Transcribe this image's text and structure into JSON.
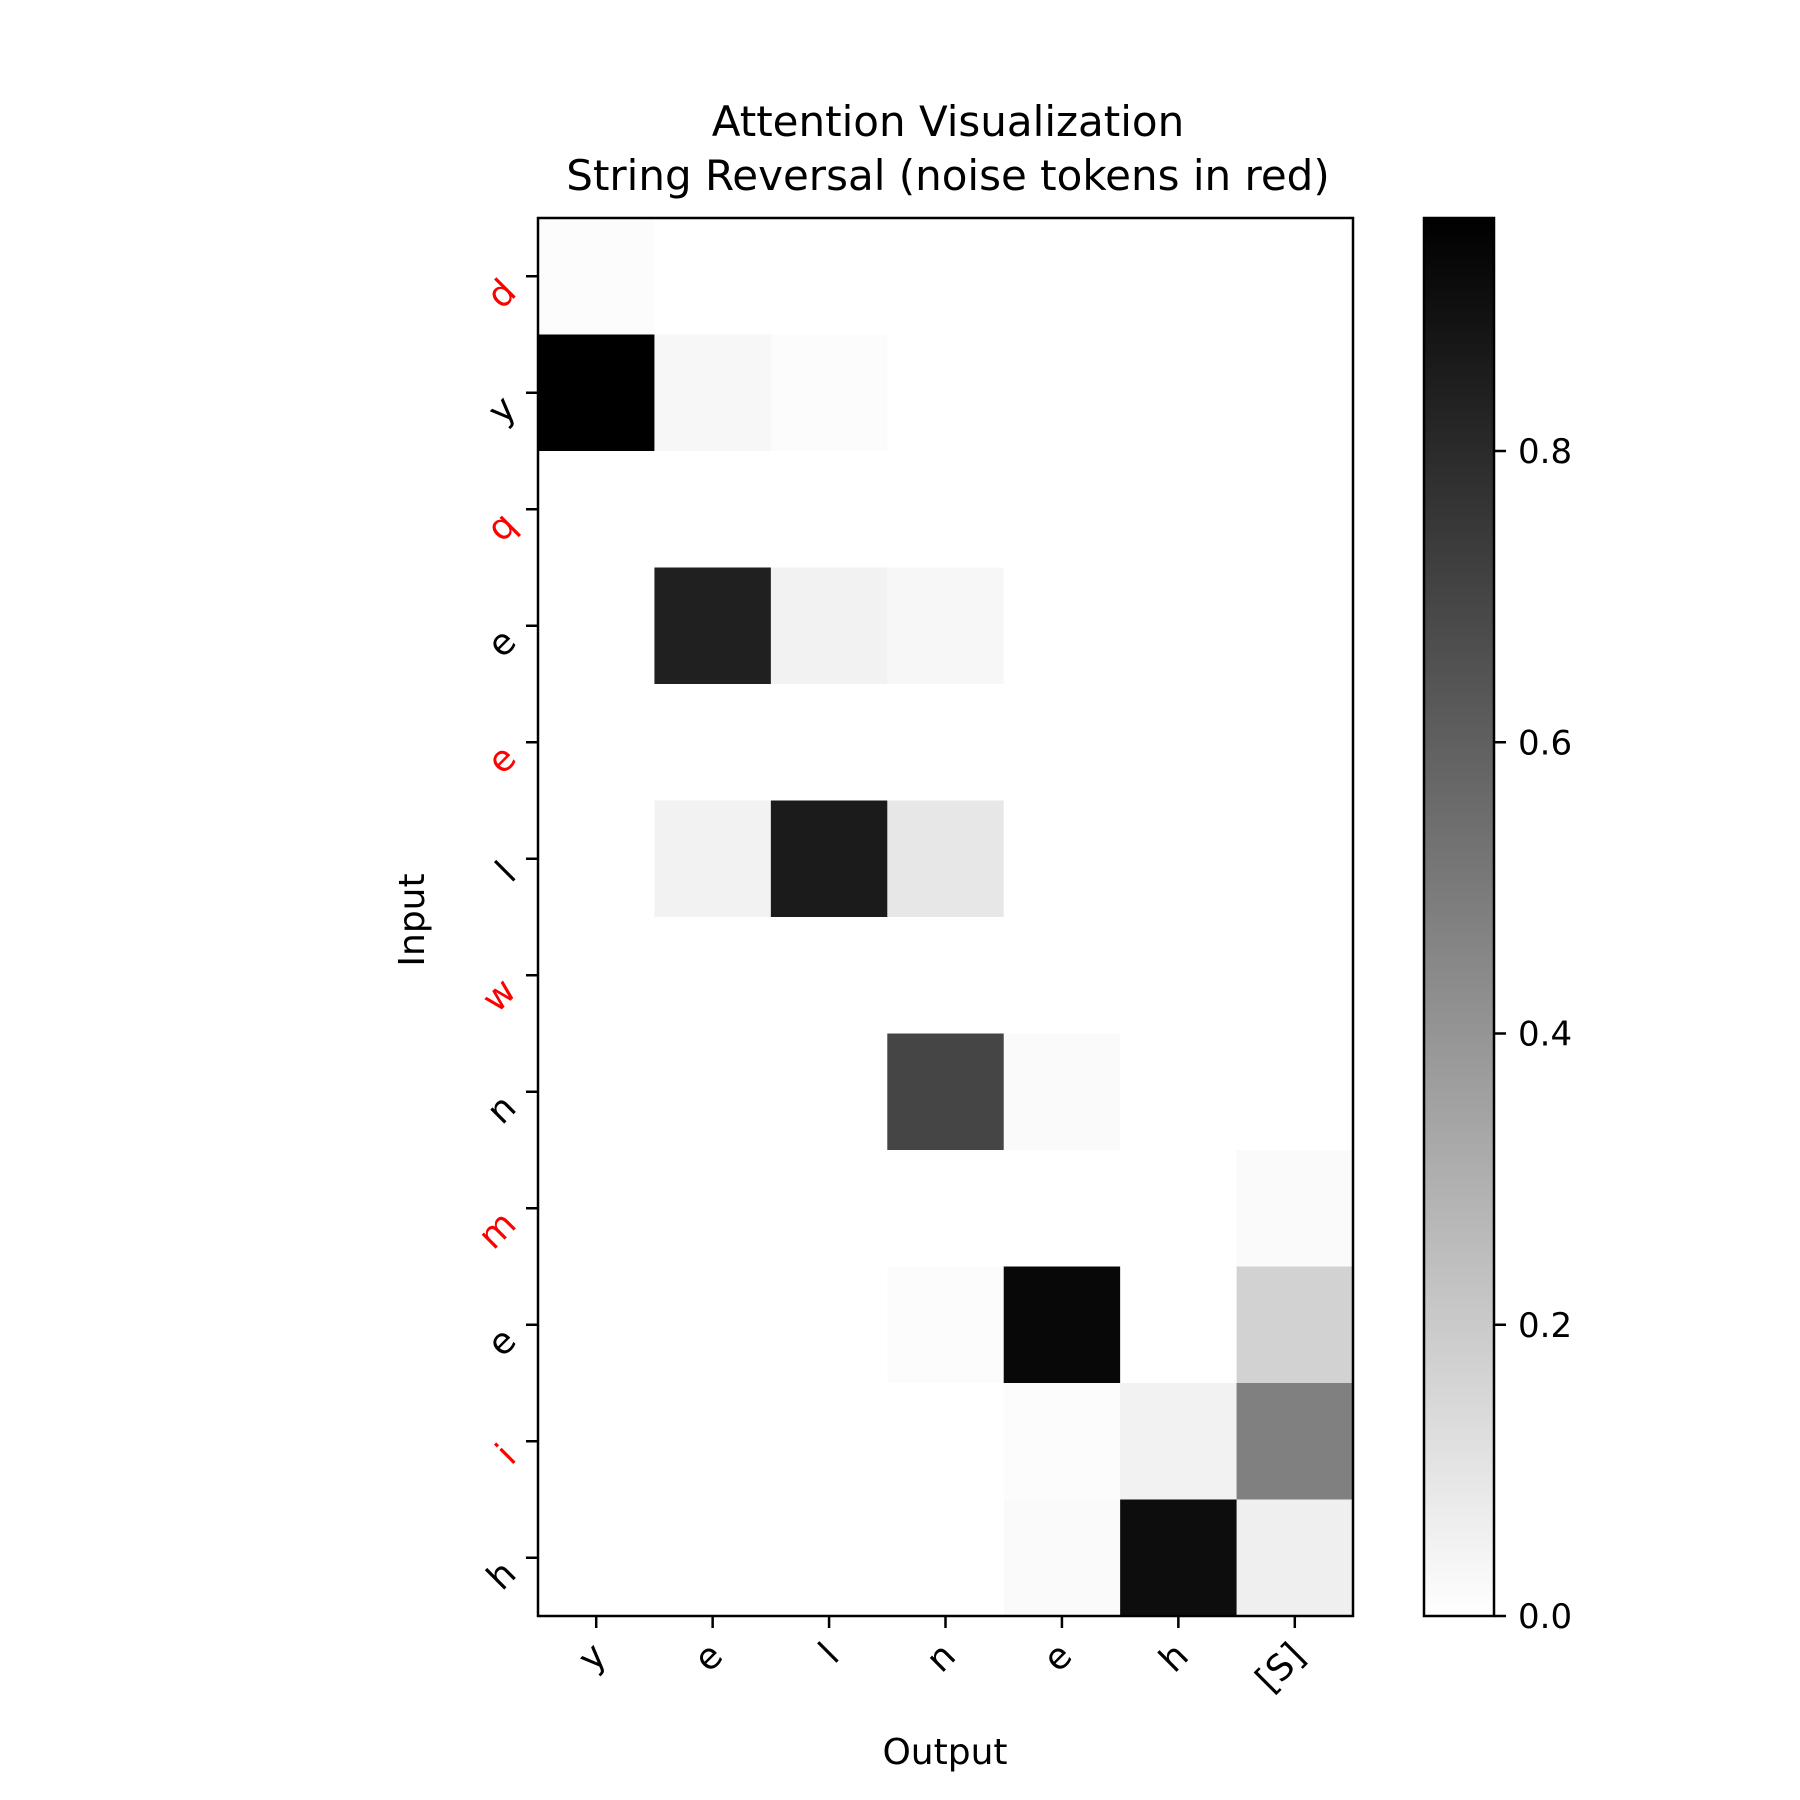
{
  "chart_data": {
    "type": "heatmap",
    "title": "Attention Visualization",
    "subtitle": "String Reversal (noise tokens in red)",
    "xlabel": "Output",
    "ylabel": "Input",
    "x_categories": [
      "y",
      "e",
      "l",
      "n",
      "e",
      "h",
      "[S]"
    ],
    "y_categories": [
      "d",
      "y",
      "q",
      "e",
      "e",
      "l",
      "w",
      "n",
      "m",
      "e",
      "i",
      "h"
    ],
    "noise_rows": [
      0,
      2,
      4,
      6,
      8,
      10
    ],
    "noise_color": "#ff0000",
    "colormap": "Greys",
    "values": [
      [
        0.01,
        0.0,
        0.0,
        0.0,
        0.0,
        0.0,
        0.0
      ],
      [
        0.96,
        0.03,
        0.01,
        0.0,
        0.0,
        0.0,
        0.0
      ],
      [
        0.0,
        0.0,
        0.0,
        0.0,
        0.0,
        0.0,
        0.0
      ],
      [
        0.0,
        0.84,
        0.05,
        0.03,
        0.0,
        0.0,
        0.0
      ],
      [
        0.0,
        0.0,
        0.0,
        0.0,
        0.0,
        0.0,
        0.0
      ],
      [
        0.0,
        0.05,
        0.86,
        0.09,
        0.0,
        0.0,
        0.0
      ],
      [
        0.0,
        0.0,
        0.0,
        0.0,
        0.0,
        0.0,
        0.0
      ],
      [
        0.0,
        0.0,
        0.0,
        0.7,
        0.02,
        0.0,
        0.0
      ],
      [
        0.0,
        0.0,
        0.0,
        0.0,
        0.0,
        0.0,
        0.02
      ],
      [
        0.0,
        0.0,
        0.0,
        0.01,
        0.93,
        0.0,
        0.17
      ],
      [
        0.0,
        0.0,
        0.0,
        0.0,
        0.01,
        0.05,
        0.48
      ],
      [
        0.0,
        0.0,
        0.0,
        0.0,
        0.02,
        0.91,
        0.06
      ]
    ],
    "colorbar": {
      "vmin": 0.0,
      "vmax": 0.96,
      "ticks": [
        0.0,
        0.2,
        0.4,
        0.6,
        0.8
      ],
      "tick_labels": [
        "0.0",
        "0.2",
        "0.4",
        "0.6",
        "0.8"
      ]
    },
    "grid": false
  }
}
